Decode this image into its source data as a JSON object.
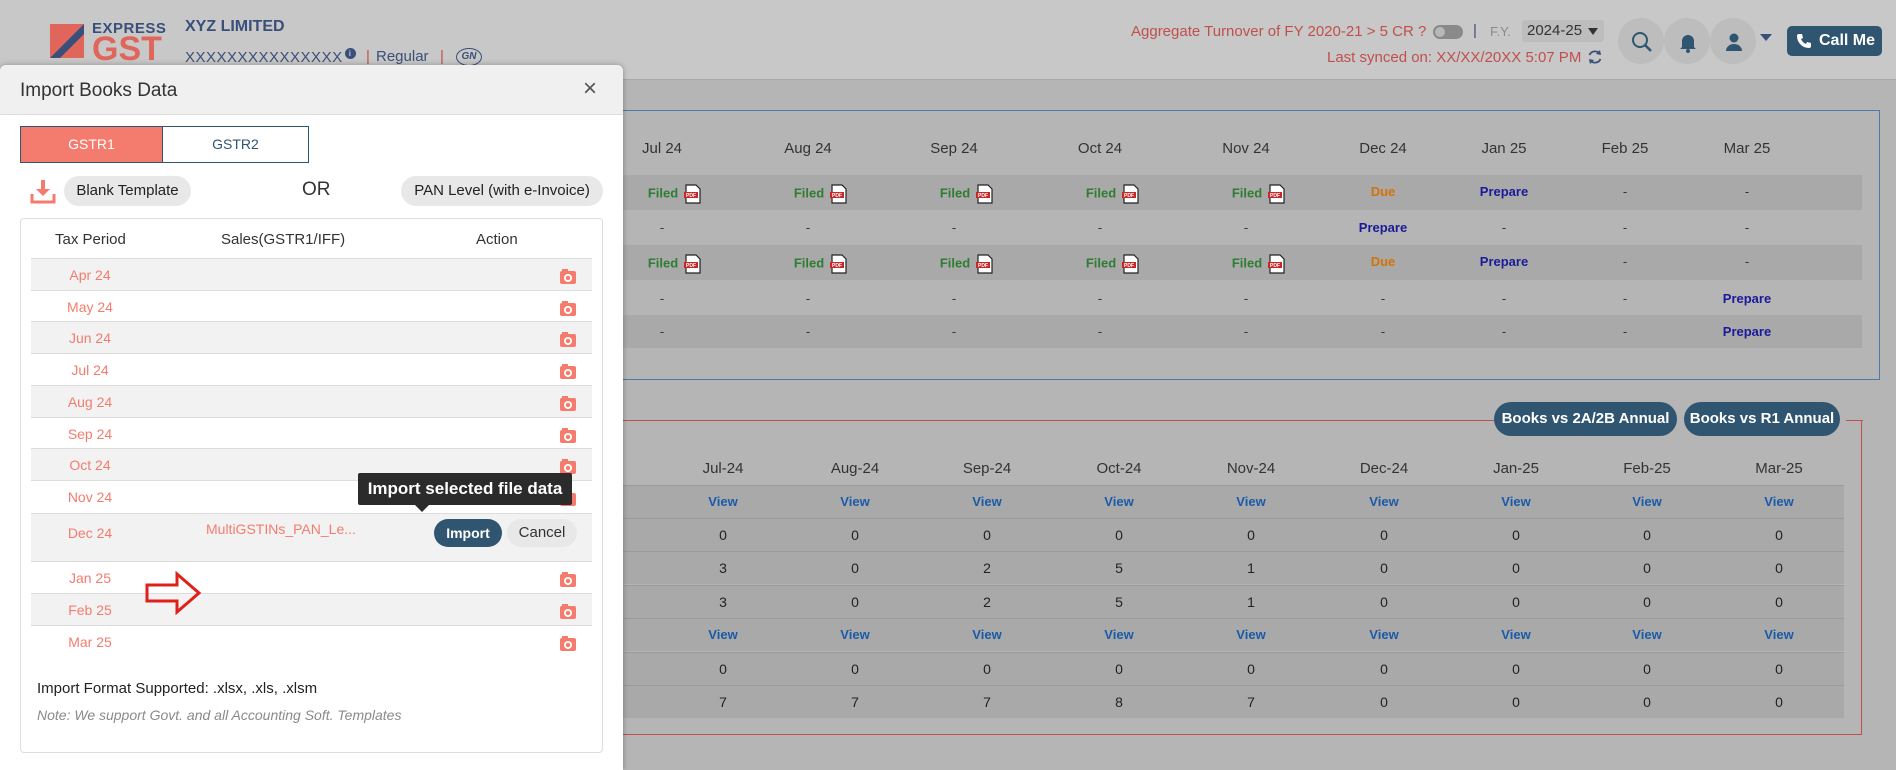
{
  "header": {
    "logo_express": "EXPRESS",
    "logo_gst": "GST",
    "company_name": "XYZ LIMITED",
    "gstin": "XXXXXXXXXXXXXXX",
    "info_glyph": "i",
    "separator": "|",
    "reg_type": "Regular",
    "gn_badge": "GN",
    "turnover_question": "Aggregate Turnover of FY 2020-21 > 5 CR ?",
    "fy_label": "F.Y.",
    "fy_value": "2024-25",
    "last_synced": "Last synced on: XX/XX/20XX 5:07 PM",
    "call_me": "Call Me",
    "icons": [
      "search-icon",
      "bell-icon",
      "user-icon",
      "phone-icon",
      "sync-icon"
    ]
  },
  "returns_grid": {
    "months": [
      "Jul 24",
      "Aug 24",
      "Sep 24",
      "Oct 24",
      "Nov 24",
      "Dec 24",
      "Jan 25",
      "Feb 25",
      "Mar 25"
    ],
    "rows": [
      [
        "Filed",
        "Filed",
        "Filed",
        "Filed",
        "Filed",
        "Due",
        "Prepare",
        "-",
        "-"
      ],
      [
        "-",
        "-",
        "-",
        "-",
        "-",
        "Prepare",
        "-",
        "-",
        "-"
      ],
      [
        "Filed",
        "Filed",
        "Filed",
        "Filed",
        "Filed",
        "Due",
        "Prepare",
        "-",
        "-"
      ],
      [
        "-",
        "-",
        "-",
        "-",
        "-",
        "-",
        "-",
        "-",
        "Prepare"
      ],
      [
        "-",
        "-",
        "-",
        "-",
        "-",
        "-",
        "-",
        "-",
        "Prepare"
      ]
    ]
  },
  "recon": {
    "btn_books_2a2b": "Books vs 2A/2B Annual",
    "btn_books_r1": "Books vs R1 Annual",
    "months": [
      "Jul-24",
      "Aug-24",
      "Sep-24",
      "Oct-24",
      "Nov-24",
      "Dec-24",
      "Jan-25",
      "Feb-25",
      "Mar-25"
    ],
    "rows": [
      [
        "View",
        "View",
        "View",
        "View",
        "View",
        "View",
        "View",
        "View",
        "View"
      ],
      [
        "0",
        "0",
        "0",
        "0",
        "0",
        "0",
        "0",
        "0",
        "0"
      ],
      [
        "3",
        "0",
        "2",
        "5",
        "1",
        "0",
        "0",
        "0",
        "0"
      ],
      [
        "3",
        "0",
        "2",
        "5",
        "1",
        "0",
        "0",
        "0",
        "0"
      ],
      [
        "View",
        "View",
        "View",
        "View",
        "View",
        "View",
        "View",
        "View",
        "View"
      ],
      [
        "0",
        "0",
        "0",
        "0",
        "0",
        "0",
        "0",
        "0",
        "0"
      ],
      [
        "7",
        "7",
        "7",
        "8",
        "7",
        "0",
        "0",
        "0",
        "0"
      ]
    ]
  },
  "modal": {
    "title": "Import Books Data",
    "close": "×",
    "tabs": [
      "GSTR1",
      "GSTR2"
    ],
    "active_tab": "GSTR1",
    "blank_template": "Blank Template",
    "or": "OR",
    "pan_level": "PAN Level (with e-Invoice)",
    "col_period": "Tax Period",
    "col_sales": "Sales(GSTR1/IFF)",
    "col_action": "Action",
    "periods": [
      "Apr 24",
      "May 24",
      "Jun 24",
      "Jul 24",
      "Aug 24",
      "Sep 24",
      "Oct 24",
      "Nov 24",
      "Dec 24",
      "Jan 25",
      "Feb 25",
      "Mar 25"
    ],
    "selected_period": "Dec 24",
    "selected_file": "MultiGSTINs_PAN_Le...",
    "import_label": "Import",
    "cancel_label": "Cancel",
    "tooltip": "Import selected file data",
    "format_supported": "Import Format Supported: .xlsx, .xls, .xlsm",
    "note": "Note: We support Govt. and all Accounting Soft. Templates"
  },
  "colors": {
    "brand_navy": "#2f5570",
    "accent_salmon": "#f47c6e",
    "filed_green": "#2e7d32",
    "due_orange": "#d4720a",
    "prepare_blue": "#1a1a9a",
    "alert_red": "#c0504d"
  }
}
